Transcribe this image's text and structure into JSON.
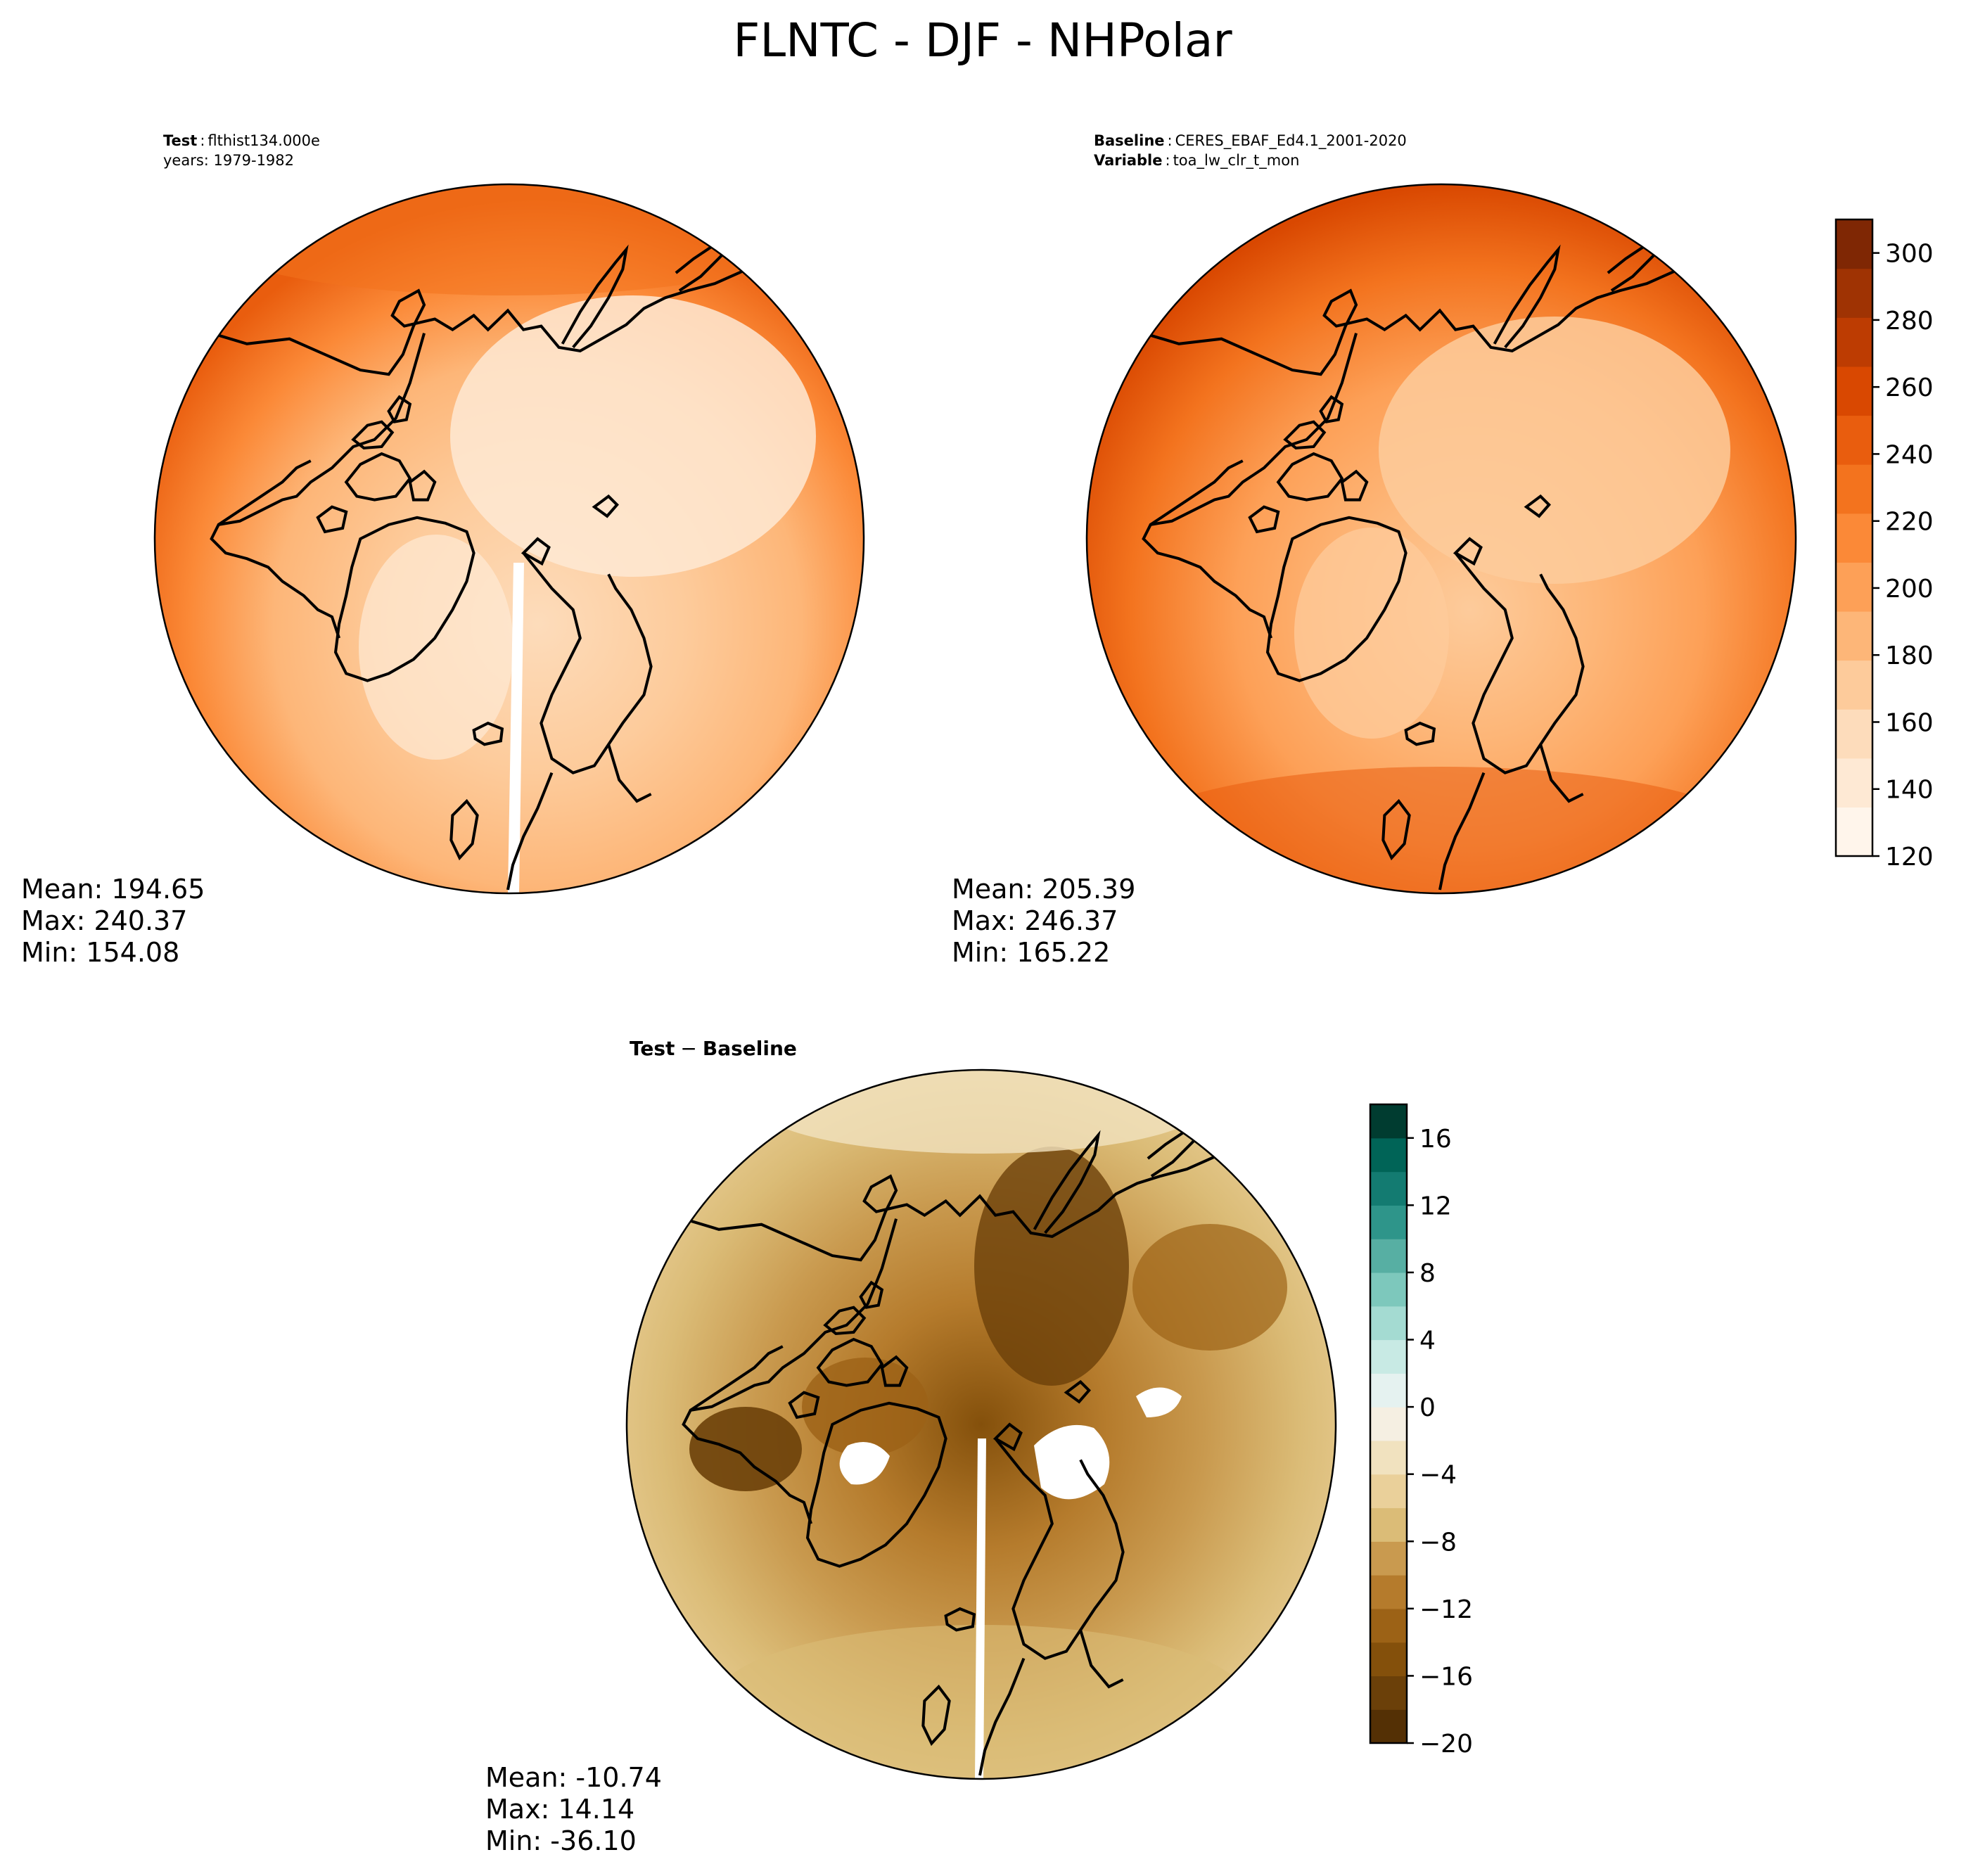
{
  "title": "FLNTC - DJF - NHPolar",
  "panels": {
    "test": {
      "label_bold": "Test",
      "label_value": "flthist134.000e",
      "line2": "years: 1979-1982",
      "stats": [
        "Mean: 194.65",
        "Max: 240.37",
        "Min: 154.08"
      ]
    },
    "baseline": {
      "label_bold": "Baseline",
      "label_value": "CERES_EBAF_Ed4.1_2001-2020",
      "line2_bold": "Variable",
      "line2_value": "toa_lw_clr_t_mon",
      "stats": [
        "Mean: 205.39",
        "Max: 246.37",
        "Min: 165.22"
      ]
    },
    "diff": {
      "label_a": "Test",
      "label_sep": "−",
      "label_b": "Baseline",
      "stats": [
        "Mean: -10.74",
        "Max: 14.14",
        "Min: -36.10"
      ]
    }
  },
  "colorbars": {
    "main": {
      "ticks": [
        "120",
        "140",
        "160",
        "180",
        "200",
        "220",
        "240",
        "260",
        "280",
        "300"
      ],
      "tick_values": [
        120,
        140,
        160,
        180,
        200,
        220,
        240,
        260,
        280,
        300
      ],
      "range": [
        120,
        310
      ],
      "colors": [
        "#fff5eb",
        "#fee9d4",
        "#fddcbb",
        "#fdcb9b",
        "#fdb678",
        "#fda057",
        "#fb8937",
        "#f3731e",
        "#e95d0e",
        "#d94801",
        "#bd3c02",
        "#9f3303",
        "#7f2704"
      ]
    },
    "diff": {
      "ticks": [
        "16",
        "12",
        "8",
        "4",
        "0",
        "−4",
        "−8",
        "−12",
        "−16",
        "−20"
      ],
      "tick_values": [
        16,
        12,
        8,
        4,
        0,
        -4,
        -8,
        -12,
        -16,
        -20
      ],
      "range": [
        -20,
        18
      ],
      "colors": [
        "#543005",
        "#6b4009",
        "#84500b",
        "#9c6216",
        "#b57b2c",
        "#c99a4f",
        "#dbbc77",
        "#ead09a",
        "#f1e2bf",
        "#f5efe2",
        "#e5f2f0",
        "#c8eae4",
        "#a4dbd2",
        "#7dc8bc",
        "#57afa3",
        "#2e958a",
        "#137b71",
        "#006457",
        "#003c30"
      ]
    }
  },
  "colors": {
    "test_base": "#f99844",
    "baseline_base": "#f78a37",
    "coast": "#000000"
  }
}
